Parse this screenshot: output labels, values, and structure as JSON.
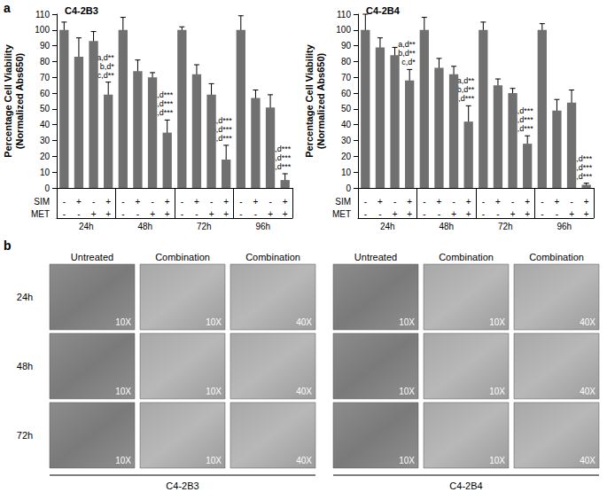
{
  "chart_data": [
    {
      "type": "bar",
      "title": "C4-2B3",
      "y_label": "Percentage Cell Viability\n(Normalized Abs650)",
      "ylim": [
        0,
        110
      ],
      "yticks": [
        0,
        10,
        20,
        30,
        40,
        50,
        60,
        70,
        80,
        90,
        100,
        110
      ],
      "grid": false,
      "color": "#707070",
      "groups": [
        "24h",
        "48h",
        "72h",
        "96h"
      ],
      "factor_rows": [
        {
          "name": "SIM",
          "marks": [
            "-",
            "+",
            "-",
            "+",
            "-",
            "+",
            "-",
            "+",
            "-",
            "+",
            "-",
            "+",
            "-",
            "+",
            "-",
            "+"
          ]
        },
        {
          "name": "MET",
          "marks": [
            "-",
            "-",
            "+",
            "+",
            "-",
            "-",
            "+",
            "+",
            "-",
            "-",
            "+",
            "+",
            "-",
            "-",
            "+",
            "+"
          ]
        }
      ],
      "values": [
        100,
        83,
        93,
        59,
        100,
        74,
        70,
        35,
        100,
        72,
        59,
        18,
        100,
        57,
        51,
        5
      ],
      "errors": [
        5,
        12,
        6,
        8,
        8,
        7,
        3,
        8,
        2,
        6,
        7,
        9,
        9,
        5,
        8,
        4
      ],
      "annotations": [
        null,
        null,
        null,
        [
          "a,d**",
          "b,d*",
          "c,d**"
        ],
        null,
        null,
        null,
        [
          "a,d***",
          "b,d***",
          "c,d***"
        ],
        null,
        null,
        null,
        [
          "a,d***",
          "b,d***",
          "c,d***"
        ],
        null,
        null,
        null,
        [
          "a,d***",
          "b,d***",
          "c,d***"
        ]
      ]
    },
    {
      "type": "bar",
      "title": "C4-2B4",
      "y_label": "Percentage Cell Viability\n(Normalized Abs650)",
      "ylim": [
        0,
        110
      ],
      "yticks": [
        0,
        10,
        20,
        30,
        40,
        50,
        60,
        70,
        80,
        90,
        100,
        110
      ],
      "grid": false,
      "color": "#707070",
      "groups": [
        "24h",
        "48h",
        "72h",
        "96h"
      ],
      "factor_rows": [
        {
          "name": "SIM",
          "marks": [
            "-",
            "+",
            "-",
            "+",
            "-",
            "+",
            "-",
            "+",
            "-",
            "+",
            "-",
            "+",
            "-",
            "+",
            "-",
            "+"
          ]
        },
        {
          "name": "MET",
          "marks": [
            "-",
            "-",
            "+",
            "+",
            "-",
            "-",
            "+",
            "+",
            "-",
            "-",
            "+",
            "+",
            "-",
            "-",
            "+",
            "+"
          ]
        }
      ],
      "values": [
        100,
        89,
        84,
        68,
        100,
        76,
        72,
        42,
        100,
        65,
        60,
        28,
        100,
        49,
        54,
        2
      ],
      "errors": [
        10,
        6,
        5,
        7,
        8,
        6,
        5,
        10,
        5,
        4,
        3,
        5,
        4,
        7,
        8,
        1
      ],
      "annotations": [
        null,
        null,
        null,
        [
          "a,d**",
          "b,d**",
          "c,d*"
        ],
        null,
        null,
        null,
        [
          "a,d**",
          "b,d**",
          "c,d***"
        ],
        null,
        null,
        null,
        [
          "a,d***",
          "b,d***",
          "c,d***"
        ],
        null,
        null,
        null,
        [
          "a,d***",
          "b,d***",
          "c,d***"
        ]
      ]
    }
  ],
  "panel_labels": [
    "a",
    "b"
  ],
  "panel_b": {
    "columns": [
      "Untreated",
      "Combination",
      "Combination"
    ],
    "rows": [
      "24h",
      "48h",
      "72h"
    ],
    "magnifications": [
      "10X",
      "10X",
      "40X"
    ],
    "cell_lines": [
      "C4-2B3",
      "C4-2B4"
    ]
  }
}
